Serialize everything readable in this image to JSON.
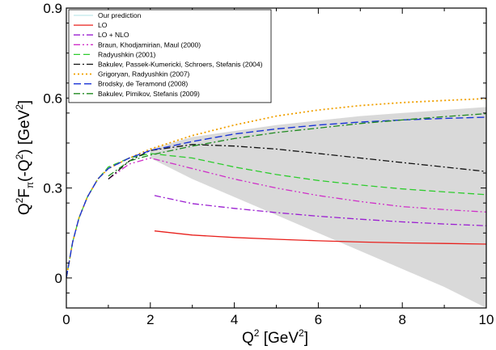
{
  "chart_data": {
    "type": "line",
    "title": "",
    "xlabel_parts": {
      "base": "Q",
      "sup": "2",
      "unit_open": " [GeV",
      "unit_sup": "2",
      "unit_close": "]"
    },
    "ylabel_parts": {
      "q": "Q",
      "q_sup": "2",
      "f": "F",
      "f_sub": "π",
      "arg_open": "(-Q",
      "arg_sup": "2",
      "arg_close": ") [GeV",
      "unit_sup": "2",
      "unit_close": "]"
    },
    "xlim": [
      0,
      10
    ],
    "ylim": [
      -0.1,
      0.9
    ],
    "xticks": [
      0,
      2,
      4,
      6,
      8,
      10
    ],
    "xtick_labels": [
      "0",
      "2",
      "4",
      "6",
      "8",
      "10"
    ],
    "yticks": [
      0,
      0.3,
      0.6,
      0.9
    ],
    "ytick_labels": [
      "0",
      "0.3",
      "0.6",
      "0.9"
    ],
    "grid": false,
    "legend_position": "top-left",
    "band": {
      "name": "Our prediction",
      "color": "#d9d9d9",
      "upper": [
        [
          2.0,
          0.43
        ],
        [
          3,
          0.47
        ],
        [
          4,
          0.49
        ],
        [
          5,
          0.51
        ],
        [
          6,
          0.525
        ],
        [
          7,
          0.54
        ],
        [
          8,
          0.55
        ],
        [
          9,
          0.56
        ],
        [
          10,
          0.57
        ]
      ],
      "lower": [
        [
          2.0,
          0.4
        ],
        [
          3,
          0.33
        ],
        [
          4,
          0.27
        ],
        [
          5,
          0.21
        ],
        [
          6,
          0.15
        ],
        [
          7,
          0.09
        ],
        [
          8,
          0.03
        ],
        [
          9,
          -0.03
        ],
        [
          10,
          -0.1
        ]
      ],
      "upper2": [
        [
          2.0,
          0.43
        ],
        [
          4,
          0.49
        ],
        [
          6,
          0.525
        ],
        [
          8,
          0.55
        ],
        [
          10,
          0.57
        ]
      ],
      "lower2": [
        [
          2.0,
          0.43
        ],
        [
          3,
          0.43
        ],
        [
          4,
          0.42
        ],
        [
          6,
          0.4
        ],
        [
          8,
          0.38
        ],
        [
          10,
          0.33
        ]
      ]
    },
    "series": [
      {
        "name": "Our prediction",
        "color": "#bfe6ea",
        "dash": "",
        "width": 1.2,
        "points": []
      },
      {
        "name": "LO",
        "color": "#e8201c",
        "dash": "",
        "width": 1.3,
        "points": [
          [
            2.1,
            0.157
          ],
          [
            3,
            0.143
          ],
          [
            4,
            0.135
          ],
          [
            5,
            0.129
          ],
          [
            6,
            0.124
          ],
          [
            7,
            0.12
          ],
          [
            8,
            0.117
          ],
          [
            9,
            0.115
          ],
          [
            10,
            0.113
          ]
        ]
      },
      {
        "name": "LO + NLO",
        "color": "#9b1fd1",
        "dash": "8 3 2 3",
        "width": 1.3,
        "points": [
          [
            2.1,
            0.275
          ],
          [
            3,
            0.248
          ],
          [
            4,
            0.232
          ],
          [
            5,
            0.218
          ],
          [
            6,
            0.206
          ],
          [
            7,
            0.196
          ],
          [
            8,
            0.187
          ],
          [
            9,
            0.18
          ],
          [
            10,
            0.174
          ]
        ]
      },
      {
        "name": "Braun, Khodjamirian, Maul (2000)",
        "color": "#cf2fc8",
        "dash": "8 3 2 3 2 3",
        "width": 1.3,
        "points": [
          [
            1.0,
            0.33
          ],
          [
            1.5,
            0.38
          ],
          [
            2.0,
            0.4
          ],
          [
            3,
            0.365
          ],
          [
            4,
            0.33
          ],
          [
            5,
            0.3
          ],
          [
            6,
            0.275
          ],
          [
            7,
            0.255
          ],
          [
            8,
            0.238
          ],
          [
            9,
            0.228
          ],
          [
            10,
            0.22
          ]
        ]
      },
      {
        "name": "Radyushkin (2001)",
        "color": "#2ecc2e",
        "dash": "8 4",
        "width": 1.3,
        "points": [
          [
            0,
            0.0
          ],
          [
            0.15,
            0.12
          ],
          [
            0.3,
            0.2
          ],
          [
            0.5,
            0.27
          ],
          [
            0.75,
            0.33
          ],
          [
            1.0,
            0.37
          ],
          [
            1.5,
            0.4
          ],
          [
            2.0,
            0.415
          ],
          [
            3,
            0.4
          ],
          [
            4,
            0.37
          ],
          [
            5,
            0.345
          ],
          [
            6,
            0.325
          ],
          [
            7,
            0.31
          ],
          [
            8,
            0.297
          ],
          [
            9,
            0.287
          ],
          [
            10,
            0.278
          ]
        ]
      },
      {
        "name": "Bakulev, Passek-Kumericki, Schroers, Stefanis (2004)",
        "color": "#111111",
        "dash": "8 3 2 3",
        "width": 1.3,
        "points": [
          [
            1.0,
            0.33
          ],
          [
            1.5,
            0.39
          ],
          [
            2.0,
            0.425
          ],
          [
            3,
            0.445
          ],
          [
            4,
            0.44
          ],
          [
            5,
            0.43
          ],
          [
            6,
            0.415
          ],
          [
            7,
            0.4
          ],
          [
            8,
            0.385
          ],
          [
            9,
            0.37
          ],
          [
            10,
            0.355
          ]
        ]
      },
      {
        "name": "Grigoryan, Radyushkin (2007)",
        "color": "#f0a000",
        "dash": "2 3",
        "width": 1.8,
        "points": [
          [
            0,
            0.0
          ],
          [
            0.15,
            0.12
          ],
          [
            0.3,
            0.2
          ],
          [
            0.5,
            0.27
          ],
          [
            0.75,
            0.33
          ],
          [
            1.0,
            0.365
          ],
          [
            1.5,
            0.4
          ],
          [
            2.0,
            0.43
          ],
          [
            3,
            0.475
          ],
          [
            4,
            0.51
          ],
          [
            5,
            0.54
          ],
          [
            6,
            0.56
          ],
          [
            7,
            0.575
          ],
          [
            8,
            0.585
          ],
          [
            9,
            0.592
          ],
          [
            10,
            0.598
          ]
        ]
      },
      {
        "name": "Brodsky, de Teramond (2008)",
        "color": "#1a33d6",
        "dash": "9 4",
        "width": 1.4,
        "points": [
          [
            0,
            0.0
          ],
          [
            0.15,
            0.12
          ],
          [
            0.3,
            0.2
          ],
          [
            0.5,
            0.27
          ],
          [
            0.75,
            0.33
          ],
          [
            1.0,
            0.365
          ],
          [
            1.5,
            0.4
          ],
          [
            2.0,
            0.425
          ],
          [
            3,
            0.455
          ],
          [
            4,
            0.48
          ],
          [
            5,
            0.497
          ],
          [
            6,
            0.51
          ],
          [
            7,
            0.52
          ],
          [
            8,
            0.527
          ],
          [
            9,
            0.532
          ],
          [
            10,
            0.536
          ]
        ]
      },
      {
        "name": "Bakulev, Pimikov, Stefanis (2009)",
        "color": "#1f8a1f",
        "dash": "8 3 2 3",
        "width": 1.3,
        "points": [
          [
            1.0,
            0.34
          ],
          [
            1.5,
            0.39
          ],
          [
            2.0,
            0.41
          ],
          [
            3,
            0.44
          ],
          [
            4,
            0.465
          ],
          [
            5,
            0.485
          ],
          [
            6,
            0.5
          ],
          [
            7,
            0.515
          ],
          [
            8,
            0.527
          ],
          [
            9,
            0.538
          ],
          [
            10,
            0.548
          ]
        ]
      }
    ]
  }
}
